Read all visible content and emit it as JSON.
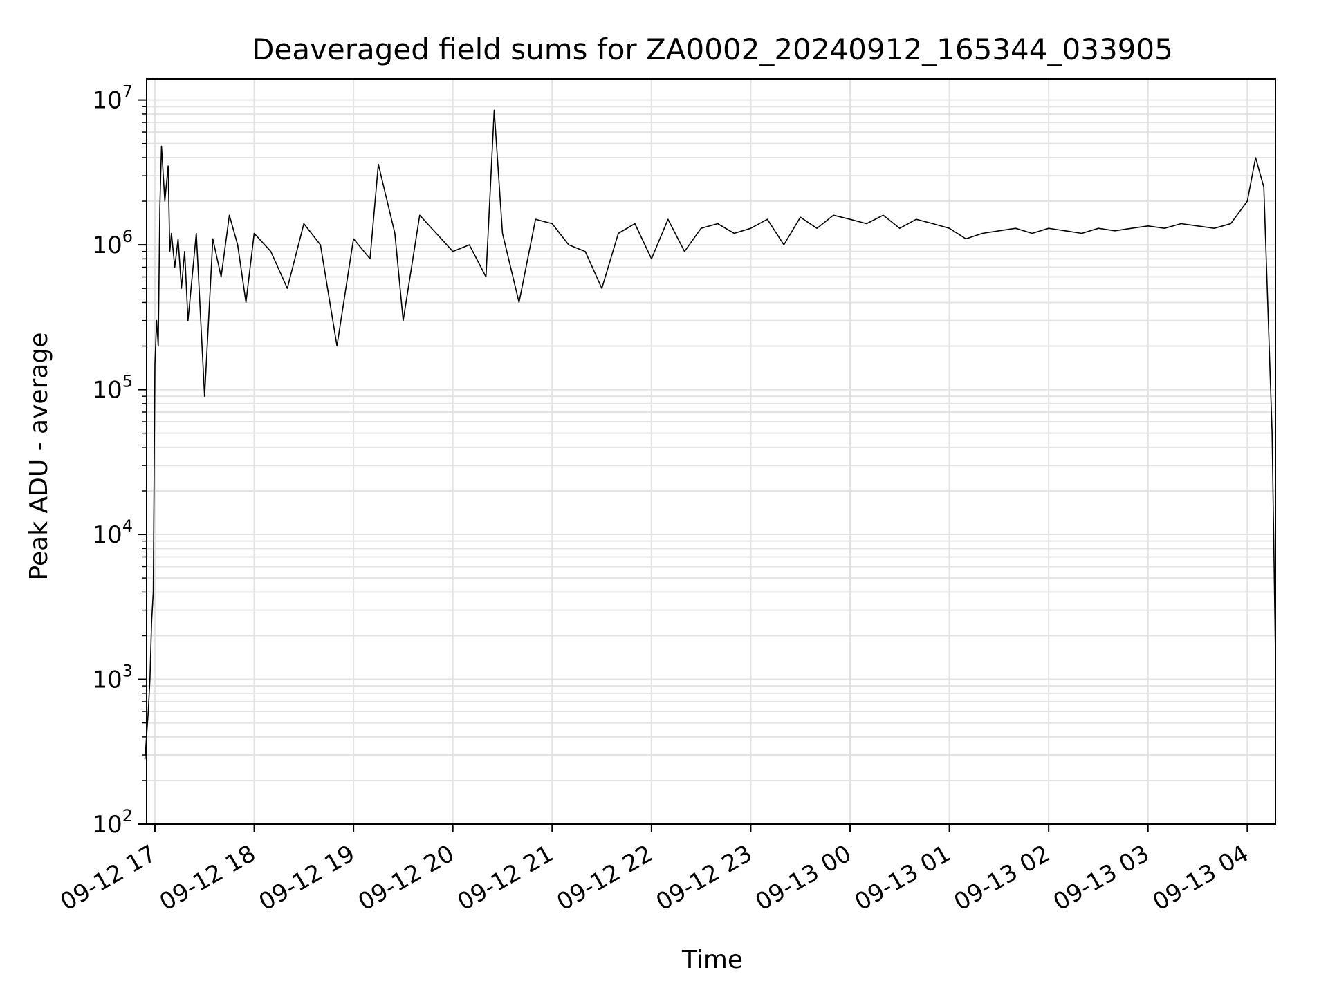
{
  "chart_data": {
    "type": "line",
    "title": "Deaveraged field sums for ZA0002_20240912_165344_033905",
    "xlabel": "Time",
    "ylabel": "Peak ADU - average",
    "yscale": "log",
    "ylim": [
      100,
      14000000
    ],
    "xlim": [
      "2024-09-12 16:55",
      "2024-09-13 04:17"
    ],
    "grid": true,
    "line_color": "#000000",
    "grid_color": "#e3e3e3",
    "x_ticks": [
      {
        "value": "2024-09-12 17:00",
        "label": "09-12 17"
      },
      {
        "value": "2024-09-12 18:00",
        "label": "09-12 18"
      },
      {
        "value": "2024-09-12 19:00",
        "label": "09-12 19"
      },
      {
        "value": "2024-09-12 20:00",
        "label": "09-12 20"
      },
      {
        "value": "2024-09-12 21:00",
        "label": "09-12 21"
      },
      {
        "value": "2024-09-12 22:00",
        "label": "09-12 22"
      },
      {
        "value": "2024-09-12 23:00",
        "label": "09-12 23"
      },
      {
        "value": "2024-09-13 00:00",
        "label": "09-13 00"
      },
      {
        "value": "2024-09-13 01:00",
        "label": "09-13 01"
      },
      {
        "value": "2024-09-13 02:00",
        "label": "09-13 02"
      },
      {
        "value": "2024-09-13 03:00",
        "label": "09-13 03"
      },
      {
        "value": "2024-09-13 04:00",
        "label": "09-13 04"
      }
    ],
    "y_ticks": [
      {
        "value": 100,
        "base": "10",
        "exp": "2"
      },
      {
        "value": 1000,
        "base": "10",
        "exp": "3"
      },
      {
        "value": 10000,
        "base": "10",
        "exp": "4"
      },
      {
        "value": 100000,
        "base": "10",
        "exp": "5"
      },
      {
        "value": 1000000,
        "base": "10",
        "exp": "6"
      },
      {
        "value": 10000000,
        "base": "10",
        "exp": "7"
      }
    ],
    "series": [
      {
        "x": [
          "2024-09-12 16:54",
          "2024-09-12 16:56",
          "2024-09-12 16:57",
          "2024-09-12 16:58",
          "2024-09-12 16:59",
          "2024-09-12 17:00",
          "2024-09-12 17:01",
          "2024-09-12 17:02",
          "2024-09-12 17:03",
          "2024-09-12 17:04",
          "2024-09-12 17:06",
          "2024-09-12 17:08",
          "2024-09-12 17:09",
          "2024-09-12 17:10",
          "2024-09-12 17:12",
          "2024-09-12 17:14",
          "2024-09-12 17:16",
          "2024-09-12 17:18",
          "2024-09-12 17:20",
          "2024-09-12 17:25",
          "2024-09-12 17:30",
          "2024-09-12 17:35",
          "2024-09-12 17:40",
          "2024-09-12 17:45",
          "2024-09-12 17:50",
          "2024-09-12 17:55",
          "2024-09-12 18:00",
          "2024-09-12 18:10",
          "2024-09-12 18:20",
          "2024-09-12 18:30",
          "2024-09-12 18:40",
          "2024-09-12 18:50",
          "2024-09-12 19:00",
          "2024-09-12 19:10",
          "2024-09-12 19:15",
          "2024-09-12 19:25",
          "2024-09-12 19:30",
          "2024-09-12 19:40",
          "2024-09-12 19:50",
          "2024-09-12 20:00",
          "2024-09-12 20:10",
          "2024-09-12 20:20",
          "2024-09-12 20:25",
          "2024-09-12 20:30",
          "2024-09-12 20:40",
          "2024-09-12 20:50",
          "2024-09-12 21:00",
          "2024-09-12 21:10",
          "2024-09-12 21:20",
          "2024-09-12 21:30",
          "2024-09-12 21:40",
          "2024-09-12 21:50",
          "2024-09-12 22:00",
          "2024-09-12 22:10",
          "2024-09-12 22:20",
          "2024-09-12 22:30",
          "2024-09-12 22:40",
          "2024-09-12 22:50",
          "2024-09-12 23:00",
          "2024-09-12 23:10",
          "2024-09-12 23:20",
          "2024-09-12 23:30",
          "2024-09-12 23:40",
          "2024-09-12 23:50",
          "2024-09-13 00:00",
          "2024-09-13 00:10",
          "2024-09-13 00:20",
          "2024-09-13 00:30",
          "2024-09-13 00:40",
          "2024-09-13 00:50",
          "2024-09-13 01:00",
          "2024-09-13 01:10",
          "2024-09-13 01:20",
          "2024-09-13 01:30",
          "2024-09-13 01:40",
          "2024-09-13 01:50",
          "2024-09-13 02:00",
          "2024-09-13 02:10",
          "2024-09-13 02:20",
          "2024-09-13 02:30",
          "2024-09-13 02:40",
          "2024-09-13 02:50",
          "2024-09-13 03:00",
          "2024-09-13 03:10",
          "2024-09-13 03:20",
          "2024-09-13 03:30",
          "2024-09-13 03:40",
          "2024-09-13 03:50",
          "2024-09-13 04:00",
          "2024-09-13 04:05",
          "2024-09-13 04:10",
          "2024-09-13 04:15",
          "2024-09-13 04:17"
        ],
        "y": [
          280,
          600,
          1000,
          2500,
          4000,
          150000,
          300000,
          200000,
          1800000,
          4800000,
          2000000,
          3500000,
          900000,
          1200000,
          700000,
          1100000,
          500000,
          900000,
          300000,
          1200000,
          90000,
          1100000,
          600000,
          1600000,
          1000000,
          400000,
          1200000,
          900000,
          500000,
          1400000,
          1000000,
          200000,
          1100000,
          800000,
          3600000,
          1200000,
          300000,
          1600000,
          1200000,
          900000,
          1000000,
          600000,
          8500000,
          1200000,
          400000,
          1500000,
          1400000,
          1000000,
          900000,
          500000,
          1200000,
          1400000,
          800000,
          1500000,
          900000,
          1300000,
          1400000,
          1200000,
          1300000,
          1500000,
          1000000,
          1550000,
          1300000,
          1600000,
          1500000,
          1400000,
          1600000,
          1300000,
          1500000,
          1400000,
          1300000,
          1100000,
          1200000,
          1250000,
          1300000,
          1200000,
          1300000,
          1250000,
          1200000,
          1300000,
          1250000,
          1300000,
          1350000,
          1300000,
          1400000,
          1350000,
          1300000,
          1400000,
          2000000,
          4000000,
          2500000,
          50000,
          1500
        ]
      }
    ]
  }
}
